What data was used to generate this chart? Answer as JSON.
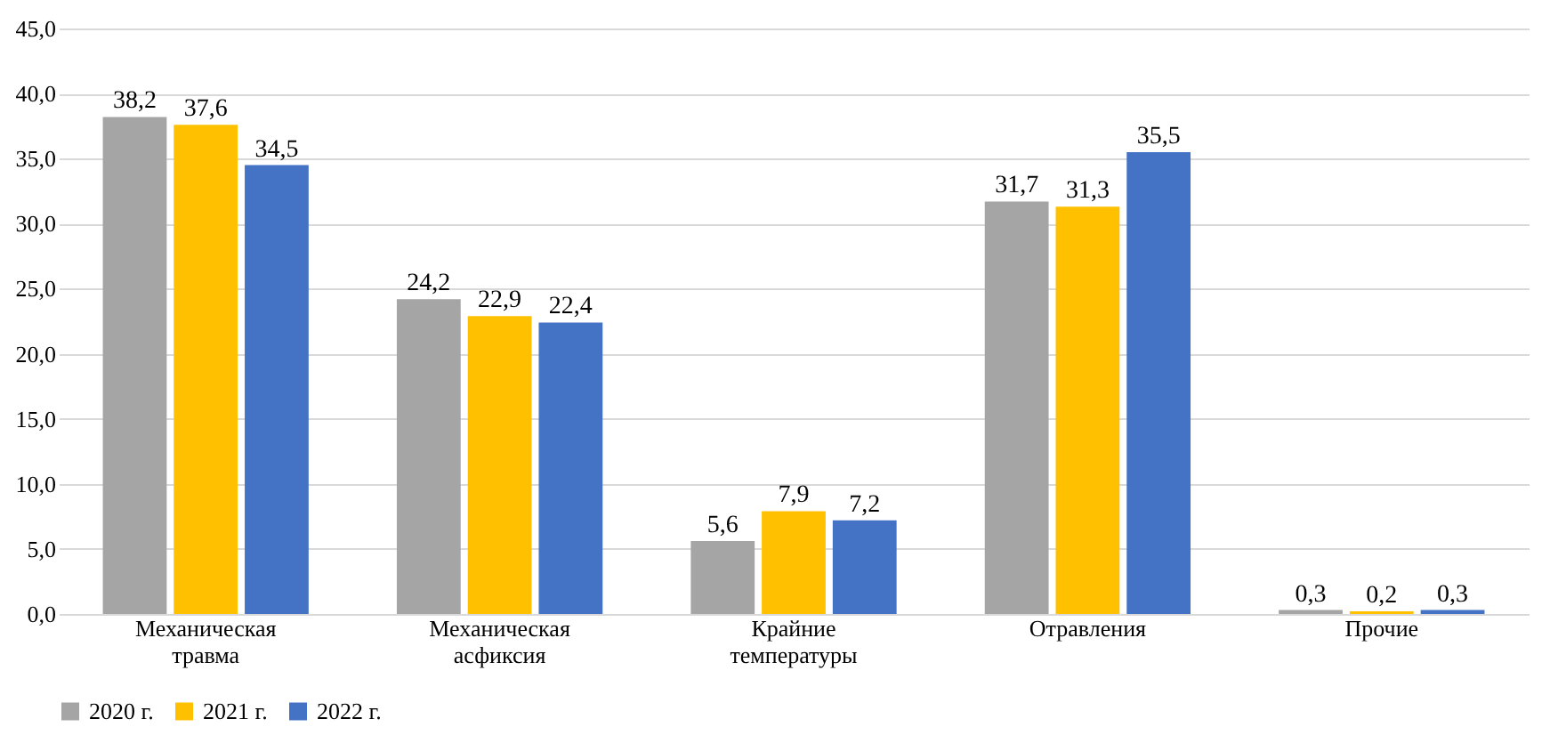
{
  "chart_data": {
    "type": "bar",
    "categories": [
      "Механическая травма",
      "Механическая асфиксия",
      "Крайние температуры",
      "Отравления",
      "Прочие"
    ],
    "series": [
      {
        "name": "2020 г.",
        "color": "#a5a5a5",
        "values": [
          38.2,
          24.2,
          5.6,
          31.7,
          0.3
        ],
        "value_labels": [
          "38,2",
          "24,2",
          "5,6",
          "31,7",
          "0,3"
        ]
      },
      {
        "name": "2021 г.",
        "color": "#ffc000",
        "values": [
          37.6,
          22.9,
          7.9,
          31.3,
          0.2
        ],
        "value_labels": [
          "37,6",
          "22,9",
          "7,9",
          "31,3",
          "0,2"
        ]
      },
      {
        "name": "2022 г.",
        "color": "#4472c4",
        "values": [
          34.5,
          22.4,
          7.2,
          35.5,
          0.3
        ],
        "value_labels": [
          "34,5",
          "22,4",
          "7,2",
          "35,5",
          "0,3"
        ]
      }
    ],
    "ylim": [
      0,
      45
    ],
    "yticks": [
      {
        "value": 0,
        "label": "0,0"
      },
      {
        "value": 5,
        "label": "5,0"
      },
      {
        "value": 10,
        "label": "10,0"
      },
      {
        "value": 15,
        "label": "15,0"
      },
      {
        "value": 20,
        "label": "20,0"
      },
      {
        "value": 25,
        "label": "25,0"
      },
      {
        "value": 30,
        "label": "30,0"
      },
      {
        "value": 35,
        "label": "35,0"
      },
      {
        "value": 40,
        "label": "40,0"
      },
      {
        "value": 45,
        "label": "45,0"
      }
    ],
    "grid": "y",
    "legend": "bottom"
  }
}
